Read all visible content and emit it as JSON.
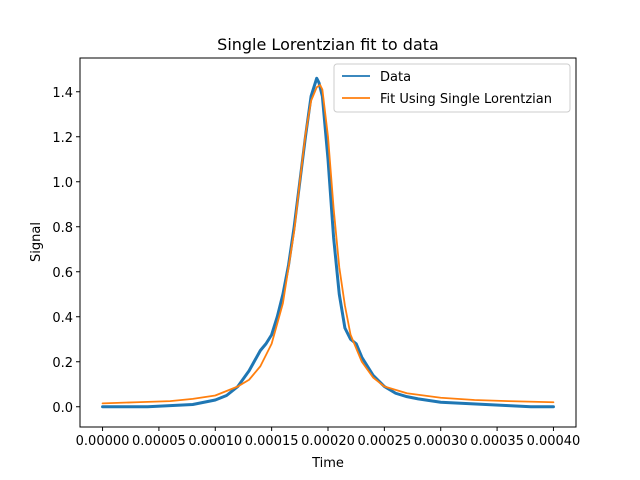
{
  "chart_data": {
    "type": "line",
    "title": "Single Lorentzian fit to data",
    "xlabel": "Time",
    "ylabel": "Signal",
    "xlim": [
      -2e-05,
      0.00042
    ],
    "ylim": [
      -0.09,
      1.55
    ],
    "grid": false,
    "legend_position": "top-right",
    "xticks": [
      0.0,
      5e-05,
      0.0001,
      0.00015,
      0.0002,
      0.00025,
      0.0003,
      0.00035,
      0.0004
    ],
    "xtick_labels": [
      "0.00000",
      "0.00005",
      "0.00010",
      "0.00015",
      "0.00020",
      "0.00025",
      "0.00030",
      "0.00035",
      "0.00040"
    ],
    "yticks": [
      0.0,
      0.2,
      0.4,
      0.6,
      0.8,
      1.0,
      1.2,
      1.4
    ],
    "ytick_labels": [
      "0.0",
      "0.2",
      "0.4",
      "0.6",
      "0.8",
      "1.0",
      "1.2",
      "1.4"
    ],
    "series": [
      {
        "name": "Data",
        "color": "#1f77b4",
        "x": [
          0.0,
          2e-05,
          4e-05,
          6e-05,
          8e-05,
          0.0001,
          0.00011,
          0.00012,
          0.00013,
          0.00014,
          0.000145,
          0.00015,
          0.000155,
          0.00016,
          0.000165,
          0.00017,
          0.000175,
          0.00018,
          0.000185,
          0.00019,
          0.000192,
          0.000195,
          0.0002,
          0.000205,
          0.00021,
          0.000215,
          0.00022,
          0.000225,
          0.00023,
          0.00024,
          0.00025,
          0.00026,
          0.00027,
          0.00028,
          0.0003,
          0.00032,
          0.00034,
          0.00036,
          0.00038,
          0.0004
        ],
        "y": [
          0.0,
          0.0,
          0.0,
          0.005,
          0.01,
          0.03,
          0.05,
          0.09,
          0.16,
          0.25,
          0.28,
          0.32,
          0.4,
          0.5,
          0.63,
          0.8,
          1.0,
          1.2,
          1.38,
          1.46,
          1.44,
          1.38,
          1.1,
          0.75,
          0.5,
          0.35,
          0.3,
          0.28,
          0.22,
          0.14,
          0.09,
          0.06,
          0.045,
          0.035,
          0.02,
          0.015,
          0.01,
          0.005,
          0.0,
          0.0
        ]
      },
      {
        "name": "Fit Using Single Lorentzian",
        "color": "#ff7f0e",
        "x": [
          0.0,
          3e-05,
          6e-05,
          8e-05,
          0.0001,
          0.00012,
          0.00013,
          0.00014,
          0.00015,
          0.00016,
          0.00017,
          0.000175,
          0.00018,
          0.000185,
          0.00019,
          0.000193,
          0.000195,
          0.0002,
          0.000205,
          0.00021,
          0.000215,
          0.00022,
          0.00023,
          0.00024,
          0.00025,
          0.00027,
          0.0003,
          0.00033,
          0.00036,
          0.0004
        ],
        "y": [
          0.015,
          0.02,
          0.025,
          0.035,
          0.05,
          0.09,
          0.12,
          0.18,
          0.28,
          0.46,
          0.78,
          1.0,
          1.21,
          1.36,
          1.42,
          1.43,
          1.41,
          1.2,
          0.88,
          0.62,
          0.45,
          0.32,
          0.2,
          0.13,
          0.09,
          0.06,
          0.04,
          0.03,
          0.025,
          0.02
        ]
      }
    ]
  }
}
